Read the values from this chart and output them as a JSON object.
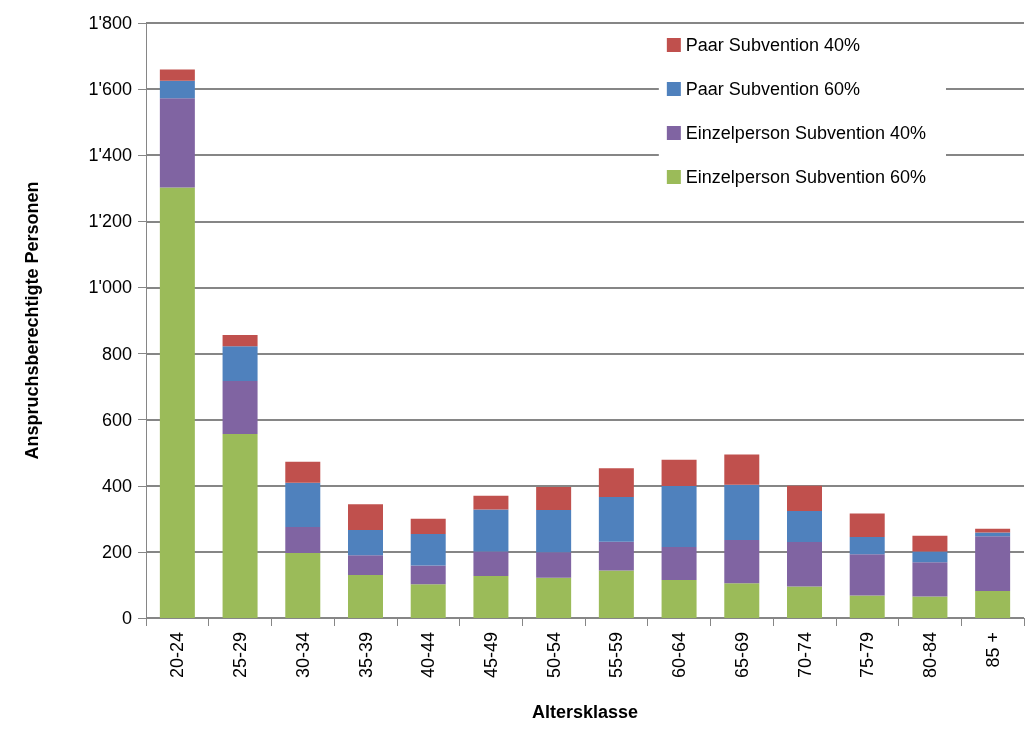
{
  "chart_data": {
    "type": "bar",
    "stacked": true,
    "xlabel": "Altersklasse",
    "ylabel": "Anspruchsberechtigte Personen",
    "categories": [
      "20-24",
      "25-29",
      "30-34",
      "35-39",
      "40-44",
      "45-49",
      "50-54",
      "55-59",
      "60-64",
      "65-69",
      "70-74",
      "75-79",
      "80-84",
      "85 +"
    ],
    "series": [
      {
        "name": "Einzelperson Subvention 60%",
        "color": "#9bbb59",
        "values": [
          1302,
          557,
          197,
          130,
          102,
          127,
          122,
          144,
          115,
          105,
          95,
          68,
          65,
          82
        ]
      },
      {
        "name": "Einzelperson Subvention 40%",
        "color": "#8064a2",
        "values": [
          270,
          160,
          78,
          60,
          57,
          74,
          77,
          87,
          100,
          131,
          135,
          125,
          104,
          165
        ]
      },
      {
        "name": "Paar Subvention 60%",
        "color": "#4f81bd",
        "values": [
          53,
          105,
          134,
          76,
          95,
          127,
          128,
          135,
          184,
          167,
          94,
          52,
          32,
          12
        ]
      },
      {
        "name": "Paar Subvention 40%",
        "color": "#c0504d",
        "values": [
          34,
          34,
          64,
          78,
          46,
          42,
          69,
          87,
          80,
          92,
          76,
          71,
          48,
          11
        ]
      }
    ],
    "ylim": [
      0,
      1800
    ],
    "yticks": [
      0,
      200,
      400,
      600,
      800,
      {
        "value": 1000,
        "label": "1'000"
      },
      {
        "value": 1200,
        "label": "1'200"
      },
      {
        "value": 1400,
        "label": "1'400"
      },
      {
        "value": 1600,
        "label": "1'600"
      },
      {
        "value": 1800,
        "label": "1'800"
      }
    ],
    "grid": "y",
    "legend": "top right"
  }
}
